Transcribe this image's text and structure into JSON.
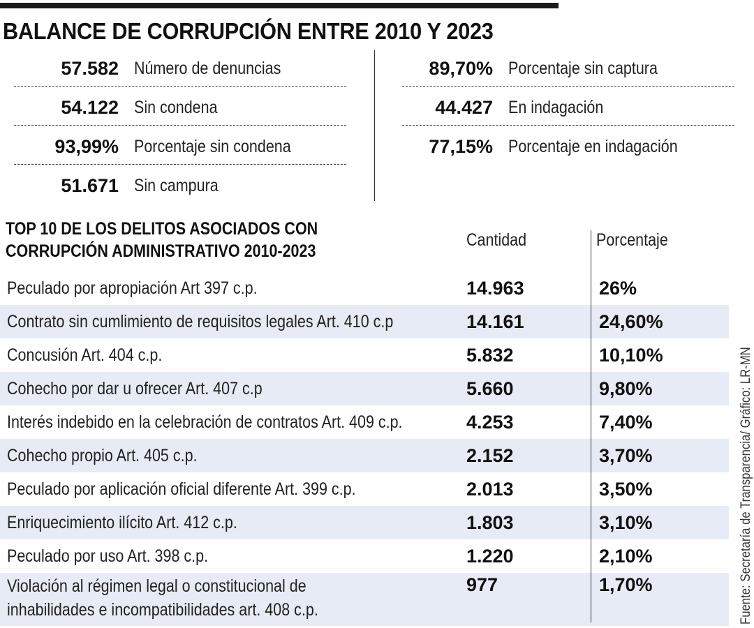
{
  "title": "BALANCE DE CORRUPCIÓN ENTRE 2010 Y 2023",
  "stats_left": [
    {
      "value": "57.582",
      "label": "Número de denuncias"
    },
    {
      "value": "54.122",
      "label": "Sin condena"
    },
    {
      "value": "93,99%",
      "label": "Porcentaje sin condena"
    },
    {
      "value": "51.671",
      "label": "Sin campura"
    }
  ],
  "stats_right": [
    {
      "value": "89,70%",
      "label": "Porcentaje sin captura"
    },
    {
      "value": "44.427",
      "label": "En indagación"
    },
    {
      "value": "77,15%",
      "label": "Porcentaje en indagación"
    }
  ],
  "table": {
    "title_line1": "TOP 10 DE LOS DELITOS ASOCIADOS CON",
    "title_line2": "CORRUPCIÓN ADMINISTRATIVO 2010-2023",
    "col_quantity": "Cantidad",
    "col_percent": "Porcentaje",
    "rows": [
      {
        "name": "Peculado por apropiación Art 397 c.p.",
        "quantity": "14.963",
        "percent": "26%"
      },
      {
        "name": "Contrato sin cumlimiento de requisitos legales Art. 410 c.p",
        "quantity": "14.161",
        "percent": "24,60%"
      },
      {
        "name": "Concusión Art. 404 c.p.",
        "quantity": "5.832",
        "percent": "10,10%"
      },
      {
        "name": "Cohecho por dar u ofrecer Art. 407 c.p",
        "quantity": "5.660",
        "percent": "9,80%"
      },
      {
        "name": "Interés indebido en la celebración de contratos Art. 409 c.p.",
        "quantity": "4.253",
        "percent": "7,40%"
      },
      {
        "name": "Cohecho propio Art. 405 c.p.",
        "quantity": "2.152",
        "percent": "3,70%"
      },
      {
        "name": "Peculado por aplicación oficial diferente Art. 399 c.p.",
        "quantity": "2.013",
        "percent": "3,50%"
      },
      {
        "name": "Enriquecimiento ilícito Art. 412 c.p.",
        "quantity": "1.803",
        "percent": "3,10%"
      },
      {
        "name": "Peculado por uso Art. 398 c.p.",
        "quantity": "1.220",
        "percent": "2,10%"
      },
      {
        "name_line1": "Violación al régimen legal o constitucional de",
        "name_line2": "inhabilidades e incompatibilidades art. 408 c.p.",
        "quantity": "977",
        "percent": "1,70%"
      }
    ]
  },
  "source": "Fuente: Secretaría de Transparencia/ Gráfico: LR-MN"
}
